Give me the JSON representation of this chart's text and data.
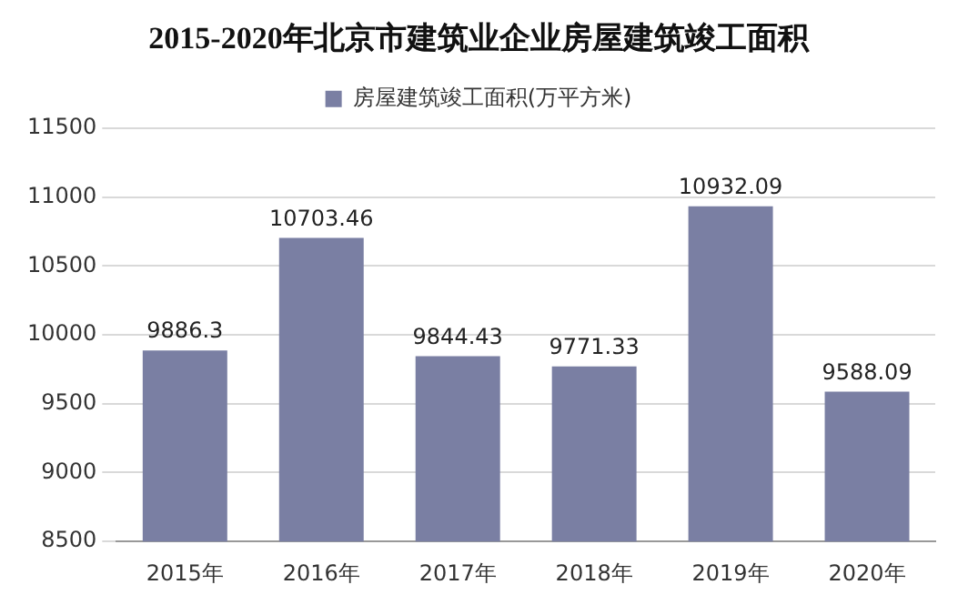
{
  "chart_data": {
    "type": "bar",
    "title": "2015-2020年北京市建筑业企业房屋建筑竣工面积",
    "categories": [
      "2015年",
      "2016年",
      "2017年",
      "2018年",
      "2019年",
      "2020年"
    ],
    "series": [
      {
        "name": "房屋建筑竣工面积(万平方米)",
        "color": "#7a7fa3",
        "values": [
          9886.3,
          10703.46,
          9844.43,
          9771.33,
          10932.09,
          9588.09
        ]
      }
    ],
    "ylim": [
      8500,
      11500
    ],
    "yticks": [
      8500,
      9000,
      9500,
      10000,
      10500,
      11000,
      11500
    ],
    "grid": "y",
    "legend": "top",
    "data_labels": true
  }
}
